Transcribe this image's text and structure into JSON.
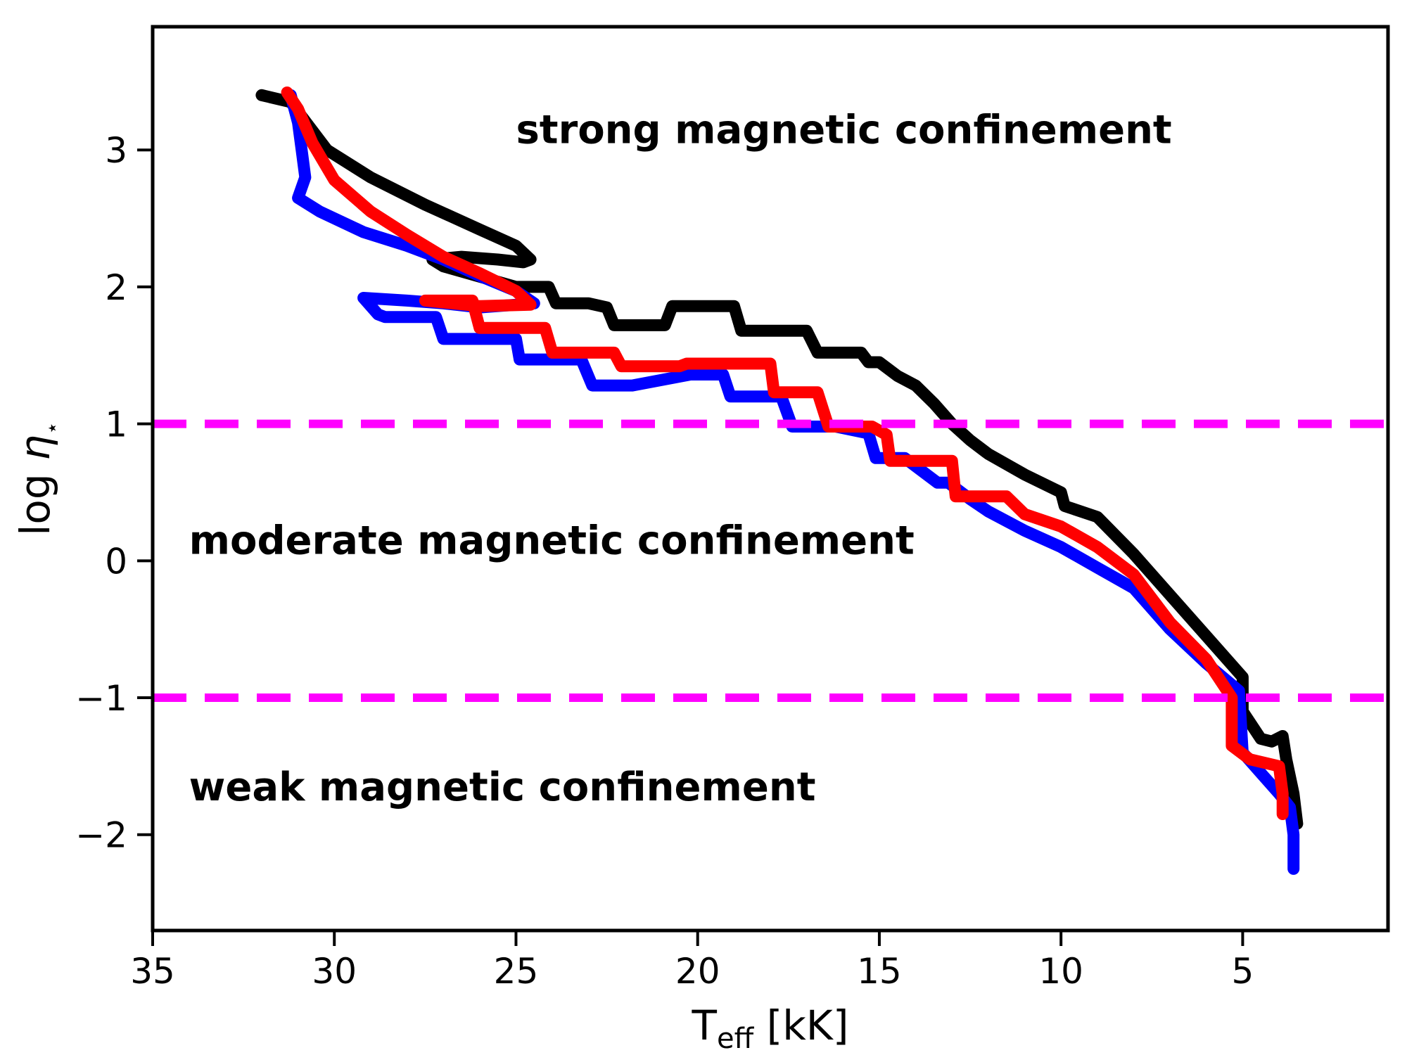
{
  "chart_data": {
    "type": "line",
    "title": "",
    "xlabel": {
      "main": "T",
      "sub": "eff",
      "unit": " [kK]"
    },
    "ylabel": {
      "pre": "log ",
      "sym": "η",
      "sup": "⋆"
    },
    "xlim": [
      35,
      1
    ],
    "ylim": [
      -2.7,
      3.9
    ],
    "xticks": [
      35,
      30,
      25,
      20,
      15,
      10,
      5
    ],
    "xtick_labels": [
      "35",
      "30",
      "25",
      "20",
      "15",
      "10",
      "5"
    ],
    "yticks": [
      3,
      2,
      1,
      0,
      -1,
      -2
    ],
    "ytick_labels": [
      "3",
      "2",
      "1",
      "0",
      "−1",
      "−2"
    ],
    "hlines": [
      {
        "y": 1,
        "color": "#ff00ff",
        "style": "dashed"
      },
      {
        "y": -1,
        "color": "#ff00ff",
        "style": "dashed"
      }
    ],
    "annotations": [
      {
        "text": "strong magnetic confinement",
        "x": 25,
        "y": 3.05
      },
      {
        "text": "moderate magnetic confinement",
        "x": 34,
        "y": 0.05
      },
      {
        "text": "weak magnetic confinement",
        "x": 34,
        "y": -1.75
      }
    ],
    "series": [
      {
        "name": "black",
        "color": "#000000",
        "x": [
          32.0,
          31.2,
          30.2,
          29.0,
          27.5,
          26.0,
          25.0,
          24.6,
          24.8,
          25.5,
          26.5,
          27.3,
          27.0,
          25.0,
          24.1,
          23.9,
          23.0,
          22.5,
          22.3,
          20.9,
          20.7,
          19.0,
          18.8,
          17.0,
          16.7,
          15.5,
          15.3,
          15.0,
          14.5,
          14.0,
          13.5,
          13.0,
          12.5,
          12.0,
          11.0,
          10.0,
          9.9,
          9.0,
          8.0,
          7.0,
          6.0,
          5.0,
          5.0,
          4.5,
          4.2,
          3.9,
          3.8,
          3.6,
          3.5
        ],
        "y": [
          3.4,
          3.35,
          3.0,
          2.8,
          2.6,
          2.42,
          2.3,
          2.2,
          2.18,
          2.2,
          2.22,
          2.2,
          2.15,
          2.0,
          2.0,
          1.88,
          1.88,
          1.85,
          1.72,
          1.72,
          1.86,
          1.86,
          1.68,
          1.68,
          1.52,
          1.52,
          1.45,
          1.45,
          1.35,
          1.28,
          1.15,
          1.0,
          0.88,
          0.78,
          0.63,
          0.5,
          0.4,
          0.32,
          0.05,
          -0.25,
          -0.55,
          -0.85,
          -1.1,
          -1.3,
          -1.32,
          -1.28,
          -1.45,
          -1.7,
          -1.92
        ]
      },
      {
        "name": "blue",
        "color": "#0000ff",
        "x": [
          31.2,
          31.0,
          30.9,
          30.8,
          31.0,
          30.4,
          29.2,
          28.0,
          27.0,
          26.0,
          25.0,
          24.5,
          26.0,
          27.0,
          28.0,
          29.2,
          28.8,
          28.6,
          27.2,
          27.0,
          25.0,
          24.9,
          23.2,
          22.9,
          21.8,
          20.2,
          19.3,
          19.1,
          17.7,
          17.4,
          16.2,
          15.3,
          15.1,
          14.3,
          13.4,
          13.1,
          12.5,
          12.0,
          11.0,
          10.0,
          9.0,
          8.0,
          7.0,
          6.0,
          5.1,
          5.0,
          4.5,
          4.0,
          3.7,
          3.6,
          3.6
        ],
        "y": [
          3.4,
          3.2,
          3.0,
          2.8,
          2.65,
          2.55,
          2.4,
          2.3,
          2.2,
          2.08,
          1.97,
          1.88,
          1.85,
          1.88,
          1.9,
          1.92,
          1.8,
          1.78,
          1.78,
          1.62,
          1.62,
          1.47,
          1.47,
          1.28,
          1.28,
          1.36,
          1.36,
          1.2,
          1.2,
          0.98,
          0.98,
          0.93,
          0.75,
          0.75,
          0.57,
          0.57,
          0.45,
          0.36,
          0.22,
          0.1,
          -0.05,
          -0.2,
          -0.5,
          -0.75,
          -0.95,
          -1.4,
          -1.55,
          -1.7,
          -1.8,
          -2.0,
          -2.25
        ]
      },
      {
        "name": "red",
        "color": "#ff0000",
        "x": [
          31.3,
          31.0,
          30.6,
          30.0,
          29.0,
          28.0,
          27.0,
          26.0,
          25.0,
          24.6,
          26.0,
          27.5,
          26.2,
          26.0,
          24.2,
          24.0,
          22.3,
          22.1,
          20.5,
          20.3,
          18.0,
          17.9,
          16.7,
          16.4,
          15.2,
          14.8,
          14.7,
          13.0,
          12.9,
          11.5,
          11.0,
          10.0,
          9.0,
          8.0,
          7.0,
          6.0,
          5.3,
          5.3,
          4.8,
          4.0,
          3.9,
          3.9
        ],
        "y": [
          3.42,
          3.3,
          3.05,
          2.78,
          2.55,
          2.38,
          2.22,
          2.1,
          1.97,
          1.87,
          1.86,
          1.9,
          1.9,
          1.7,
          1.7,
          1.52,
          1.52,
          1.42,
          1.42,
          1.44,
          1.44,
          1.23,
          1.23,
          0.98,
          0.98,
          0.92,
          0.73,
          0.73,
          0.47,
          0.47,
          0.34,
          0.25,
          0.1,
          -0.1,
          -0.45,
          -0.72,
          -1.0,
          -1.35,
          -1.45,
          -1.5,
          -1.7,
          -1.85
        ]
      }
    ]
  }
}
